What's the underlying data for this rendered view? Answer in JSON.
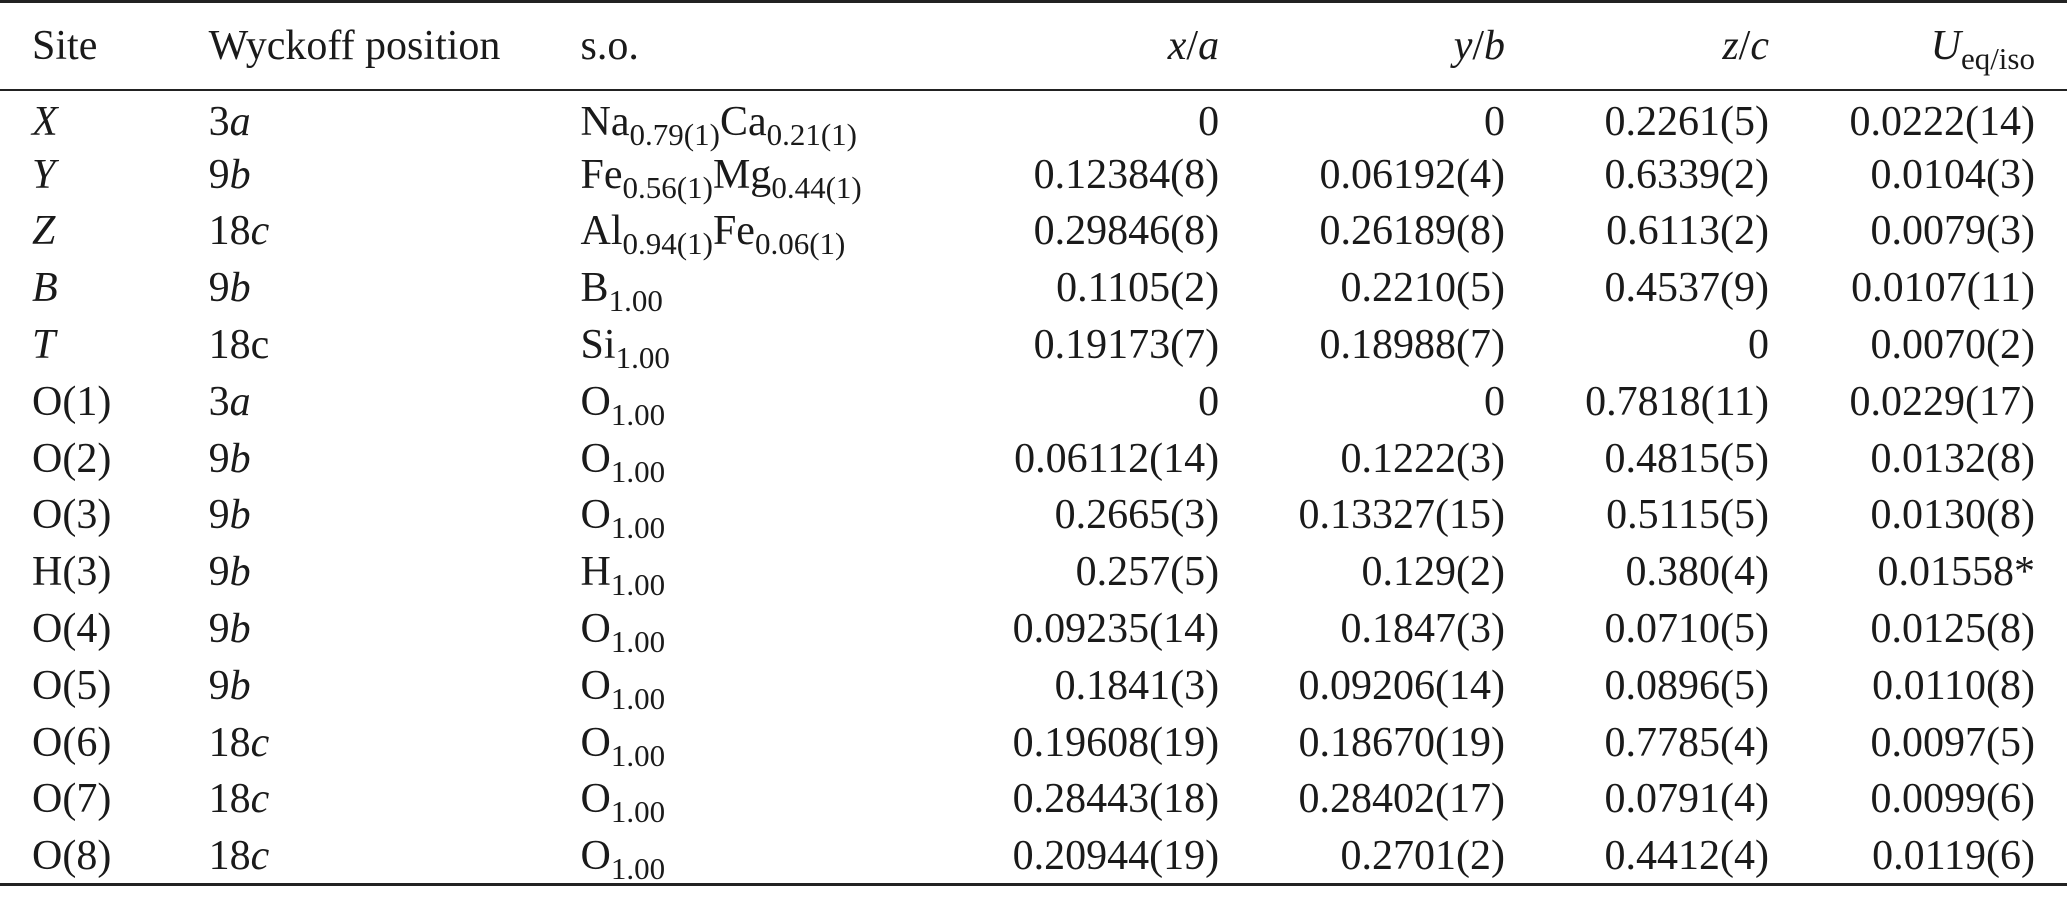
{
  "headers": {
    "site": "Site",
    "wyckoff": "Wyckoff position",
    "so": "s.o.",
    "x_var": "x",
    "x_slash": "/",
    "x_den": "a",
    "y_var": "y",
    "y_slash": "/",
    "y_den": "b",
    "z_var": "z",
    "z_slash": "/",
    "z_den": "c",
    "u_main": "U",
    "u_sub": "eq/iso"
  },
  "rows": [
    {
      "site": "X",
      "site_italic": true,
      "wyck_num": "3",
      "wyck_letter": "a",
      "wyck_letter_italic": true,
      "so": [
        {
          "el": "Na",
          "occ": "0.79(1)"
        },
        {
          "el": "Ca",
          "occ": "0.21(1)"
        }
      ],
      "x": "0",
      "y": "0",
      "z": "0.2261(5)",
      "u": "0.0222(14)"
    },
    {
      "site": "Y",
      "site_italic": true,
      "wyck_num": "9",
      "wyck_letter": "b",
      "wyck_letter_italic": true,
      "so": [
        {
          "el": "Fe",
          "occ": "0.56(1)"
        },
        {
          "el": "Mg",
          "occ": "0.44(1)"
        }
      ],
      "x": "0.12384(8)",
      "y": "0.06192(4)",
      "z": "0.6339(2)",
      "u": "0.0104(3)"
    },
    {
      "site": "Z",
      "site_italic": true,
      "wyck_num": "18",
      "wyck_letter": "c",
      "wyck_letter_italic": true,
      "so": [
        {
          "el": "Al",
          "occ": "0.94(1)"
        },
        {
          "el": "Fe",
          "occ": "0.06(1)"
        }
      ],
      "x": "0.29846(8)",
      "y": "0.26189(8)",
      "z": "0.6113(2)",
      "u": "0.0079(3)"
    },
    {
      "site": "B",
      "site_italic": true,
      "wyck_num": "9",
      "wyck_letter": "b",
      "wyck_letter_italic": true,
      "so": [
        {
          "el": "B",
          "occ": "1.00"
        }
      ],
      "x": "0.1105(2)",
      "y": "0.2210(5)",
      "z": "0.4537(9)",
      "u": "0.0107(11)"
    },
    {
      "site": "T",
      "site_italic": true,
      "wyck_num": "18",
      "wyck_letter": "c",
      "wyck_letter_italic": false,
      "so": [
        {
          "el": "Si",
          "occ": "1.00"
        }
      ],
      "x": "0.19173(7)",
      "y": "0.18988(7)",
      "z": "0",
      "u": "0.0070(2)"
    },
    {
      "site": "O(1)",
      "site_italic": false,
      "wyck_num": "3",
      "wyck_letter": "a",
      "wyck_letter_italic": true,
      "so": [
        {
          "el": "O",
          "occ": "1.00"
        }
      ],
      "x": "0",
      "y": "0",
      "z": "0.7818(11)",
      "u": "0.0229(17)"
    },
    {
      "site": "O(2)",
      "site_italic": false,
      "wyck_num": "9",
      "wyck_letter": "b",
      "wyck_letter_italic": true,
      "so": [
        {
          "el": "O",
          "occ": "1.00"
        }
      ],
      "x": "0.06112(14)",
      "y": "0.1222(3)",
      "z": "0.4815(5)",
      "u": "0.0132(8)"
    },
    {
      "site": "O(3)",
      "site_italic": false,
      "wyck_num": "9",
      "wyck_letter": "b",
      "wyck_letter_italic": true,
      "so": [
        {
          "el": "O",
          "occ": "1.00"
        }
      ],
      "x": "0.2665(3)",
      "y": "0.13327(15)",
      "z": "0.5115(5)",
      "u": "0.0130(8)"
    },
    {
      "site": "H(3)",
      "site_italic": false,
      "wyck_num": "9",
      "wyck_letter": "b",
      "wyck_letter_italic": true,
      "so": [
        {
          "el": "H",
          "occ": "1.00"
        }
      ],
      "x": "0.257(5)",
      "y": "0.129(2)",
      "z": "0.380(4)",
      "u": "0.01558*"
    },
    {
      "site": "O(4)",
      "site_italic": false,
      "wyck_num": "9",
      "wyck_letter": "b",
      "wyck_letter_italic": true,
      "so": [
        {
          "el": "O",
          "occ": "1.00"
        }
      ],
      "x": "0.09235(14)",
      "y": "0.1847(3)",
      "z": "0.0710(5)",
      "u": "0.0125(8)"
    },
    {
      "site": "O(5)",
      "site_italic": false,
      "wyck_num": "9",
      "wyck_letter": "b",
      "wyck_letter_italic": true,
      "so": [
        {
          "el": "O",
          "occ": "1.00"
        }
      ],
      "x": "0.1841(3)",
      "y": "0.09206(14)",
      "z": "0.0896(5)",
      "u": "0.0110(8)"
    },
    {
      "site": "O(6)",
      "site_italic": false,
      "wyck_num": "18",
      "wyck_letter": "c",
      "wyck_letter_italic": true,
      "so": [
        {
          "el": "O",
          "occ": "1.00"
        }
      ],
      "x": "0.19608(19)",
      "y": "0.18670(19)",
      "z": "0.7785(4)",
      "u": "0.0097(5)"
    },
    {
      "site": "O(7)",
      "site_italic": false,
      "wyck_num": "18",
      "wyck_letter": "c",
      "wyck_letter_italic": true,
      "so": [
        {
          "el": "O",
          "occ": "1.00"
        }
      ],
      "x": "0.28443(18)",
      "y": "0.28402(17)",
      "z": "0.0791(4)",
      "u": "0.0099(6)"
    },
    {
      "site": "O(8)",
      "site_italic": false,
      "wyck_num": "18",
      "wyck_letter": "c",
      "wyck_letter_italic": true,
      "so": [
        {
          "el": "O",
          "occ": "1.00"
        }
      ],
      "x": "0.20944(19)",
      "y": "0.2701(2)",
      "z": "0.4412(4)",
      "u": "0.0119(6)"
    }
  ]
}
